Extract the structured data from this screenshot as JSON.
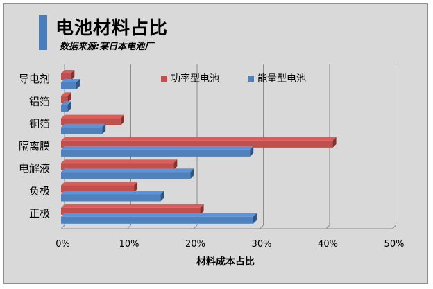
{
  "chart_data": {
    "type": "bar",
    "orientation": "horizontal",
    "title": "电池材料占比",
    "subtitle": "数据来源:某日本电池厂",
    "xlabel": "材料成本占比",
    "ylabel": "",
    "categories": [
      "导电剂",
      "铝箔",
      "铜箔",
      "隔离膜",
      "电解液",
      "负极",
      "正极"
    ],
    "series": [
      {
        "name": "功率型电池",
        "color": "#c0504d",
        "values": [
          1.5,
          1,
          9,
          41,
          17,
          11,
          21
        ]
      },
      {
        "name": "能量型电池",
        "color": "#4f81bd",
        "values": [
          2.3,
          1,
          6.2,
          28.5,
          19.5,
          15,
          29
        ]
      }
    ],
    "xlim": [
      0,
      50
    ],
    "xticks": [
      "0%",
      "10%",
      "20%",
      "30%",
      "40%",
      "50%"
    ],
    "grid": true,
    "legend": "top-right"
  }
}
